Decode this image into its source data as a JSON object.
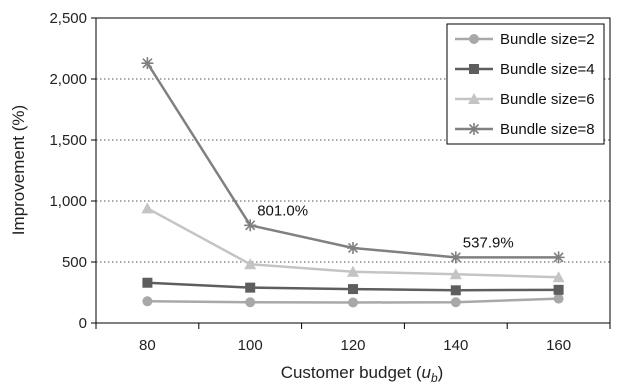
{
  "chart_data": {
    "type": "line",
    "x": [
      80,
      100,
      120,
      140,
      160
    ],
    "xticks": [
      "80",
      "100",
      "120",
      "140",
      "160"
    ],
    "xlim": [
      70,
      170
    ],
    "ylim": [
      0,
      2500
    ],
    "yticks": [
      "0",
      "500",
      "1,000",
      "1,500",
      "2,000",
      "2,500"
    ],
    "ytick_values": [
      0,
      500,
      1000,
      1500,
      2000,
      2500
    ],
    "xlabel_text": "Customer budget (",
    "xlabel_var": "u",
    "xlabel_sub": "b",
    "xlabel_close": ")",
    "ylabel": "Improvement (%)",
    "grid": "horizontal dotted",
    "legend_position": "top-right",
    "series": [
      {
        "name": "Bundle size=2",
        "marker": "circle",
        "color": "#a8a8a8",
        "values": [
          178,
          170,
          168,
          170,
          200
        ]
      },
      {
        "name": "Bundle size=4",
        "marker": "square",
        "color": "#5e5e5e",
        "values": [
          330,
          290,
          278,
          268,
          272
        ]
      },
      {
        "name": "Bundle size=6",
        "marker": "triangle",
        "color": "#c4c4c4",
        "values": [
          940,
          482,
          420,
          400,
          375
        ]
      },
      {
        "name": "Bundle size=8",
        "marker": "star",
        "color": "#808080",
        "values": [
          2130,
          801,
          615,
          538,
          538
        ]
      }
    ],
    "annotations": [
      {
        "text": "801.0%",
        "x": 100,
        "y": 801
      },
      {
        "text": "537.9%",
        "x": 140,
        "y": 538
      }
    ]
  }
}
